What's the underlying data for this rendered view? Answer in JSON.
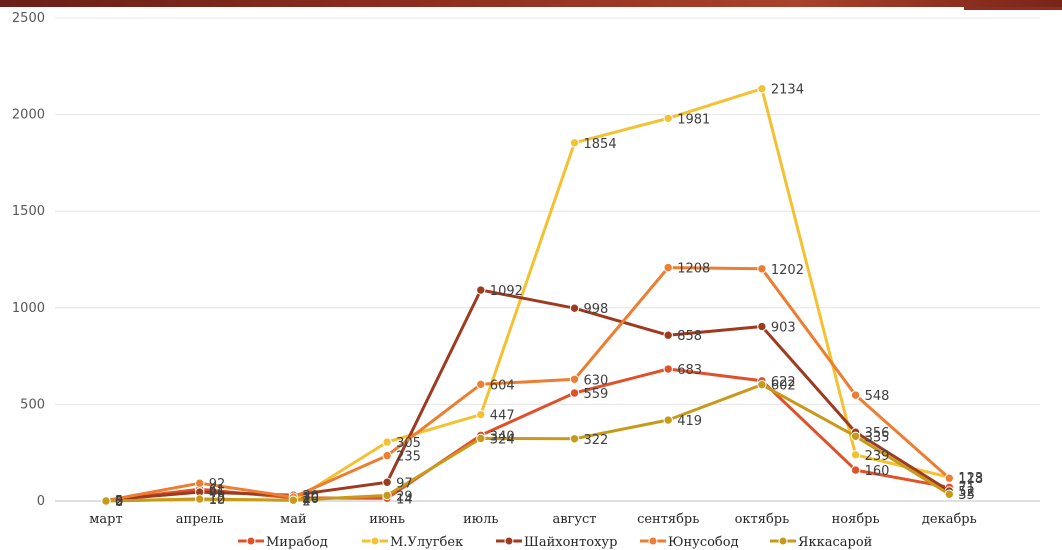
{
  "chart_data": {
    "type": "line",
    "categories": [
      "март",
      "апрель",
      "май",
      "июнь",
      "июль",
      "август",
      "сентябрь",
      "октябрь",
      "ноябрь",
      "декабрь"
    ],
    "ylim": [
      0,
      2500
    ],
    "yticks": [
      0,
      500,
      1000,
      1500,
      2000,
      2500
    ],
    "grid": true,
    "legend_position": "bottom",
    "series": [
      {
        "name": "Мирабод",
        "color": "#e0512a",
        "values": [
          3,
          61,
          16,
          14,
          340,
          559,
          683,
          622,
          160,
          71
        ]
      },
      {
        "name": "М.Улугбек",
        "color": "#f2c232",
        "values": [
          0,
          12,
          2,
          305,
          447,
          1854,
          1981,
          2134,
          239,
          123
        ]
      },
      {
        "name": "Шайхонтохур",
        "color": "#9e3a1f",
        "values": [
          5,
          46,
          30,
          97,
          1092,
          998,
          858,
          903,
          356,
          52
        ]
      },
      {
        "name": "Юнусобод",
        "color": "#ed7d31",
        "values": [
          2,
          92,
          20,
          235,
          604,
          630,
          1208,
          1202,
          548,
          118
        ]
      },
      {
        "name": "Яккасарой",
        "color": "#c89a1a",
        "values": [
          0,
          10,
          4,
          29,
          324,
          322,
          419,
          602,
          335,
          35
        ]
      }
    ]
  }
}
